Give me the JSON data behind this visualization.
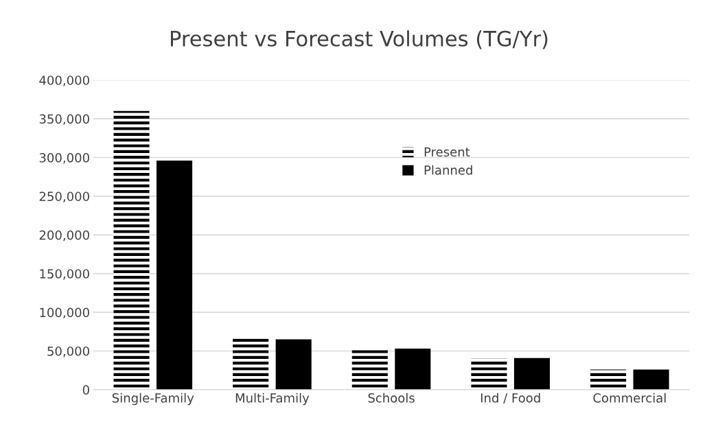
{
  "chart_data": {
    "type": "bar",
    "title": "Present vs Forecast Volumes (TG/Yr)",
    "categories": [
      "Single-Family",
      "Multi-Family",
      "Schools",
      "Ind / Food",
      "Commercial"
    ],
    "series": [
      {
        "name": "Present",
        "color": "#000000",
        "values": [
          360000,
          66000,
          54000,
          40000,
          26000
        ]
      },
      {
        "name": "Planned",
        "color": "#000000",
        "values": [
          296000,
          65000,
          53000,
          41000,
          26000
        ]
      }
    ],
    "ylim": [
      0,
      400000
    ],
    "yticks": [
      {
        "value": 0,
        "label": "0"
      },
      {
        "value": 50000,
        "label": "50,000"
      },
      {
        "value": 100000,
        "label": "100,000"
      },
      {
        "value": 150000,
        "label": "150,000"
      },
      {
        "value": 200000,
        "label": "200,000"
      },
      {
        "value": 250000,
        "label": "250,000"
      },
      {
        "value": 300000,
        "label": "300,000"
      },
      {
        "value": 350000,
        "label": "350,000"
      },
      {
        "value": 400000,
        "label": "400,000"
      }
    ],
    "grid": "y",
    "legend": "top"
  }
}
